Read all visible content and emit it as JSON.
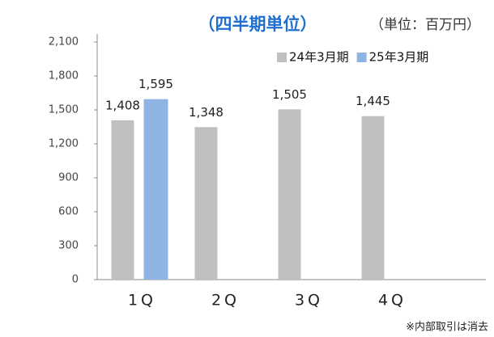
{
  "chart_data": {
    "type": "bar",
    "title": "（四半期単位）",
    "unit_label": "（単位：百万円）",
    "footnote": "※内部取引は消去",
    "categories": [
      "1Q",
      "2Q",
      "3Q",
      "4Q"
    ],
    "series": [
      {
        "name": "24年3月期",
        "color": "#bfbfbf",
        "values": [
          1408,
          1348,
          1505,
          1445
        ],
        "value_labels": [
          "1,408",
          "1,348",
          "1,505",
          "1,445"
        ]
      },
      {
        "name": "25年3月期",
        "color": "#8db4e2",
        "values": [
          1595,
          null,
          null,
          null
        ],
        "value_labels": [
          "1,595",
          null,
          null,
          null
        ]
      }
    ],
    "ylim": [
      0,
      2100
    ],
    "yticks": [
      0,
      300,
      600,
      900,
      {
        "value": 1200,
        "label": "1,200"
      },
      {
        "value": 1500,
        "label": "1,500"
      },
      {
        "value": 1800,
        "label": "1,800"
      },
      {
        "value": 2100,
        "label": "2,100"
      }
    ],
    "legend": "top-right",
    "grid": false
  }
}
